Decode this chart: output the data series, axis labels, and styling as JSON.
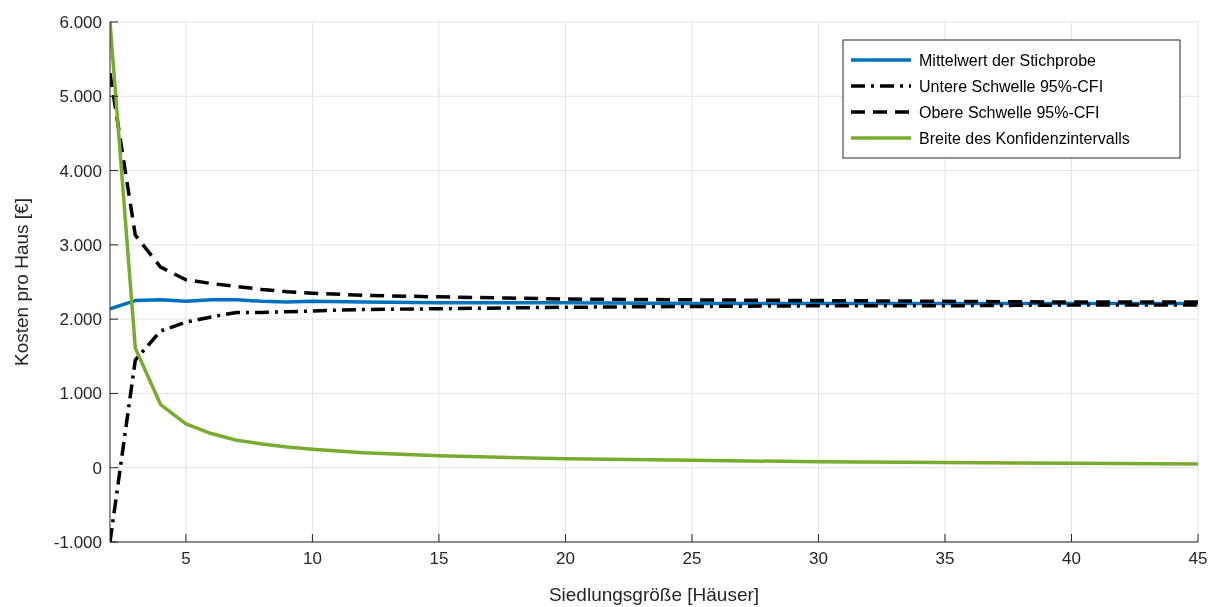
{
  "chart_data": {
    "type": "line",
    "xlabel": "Siedlungsgröße [Häuser]",
    "ylabel": "Kosten pro Haus [€]",
    "x": [
      2,
      3,
      4,
      5,
      6,
      7,
      8,
      9,
      10,
      12,
      15,
      20,
      25,
      30,
      35,
      40,
      45
    ],
    "series": [
      {
        "name": "Mittelwert der Stichprobe",
        "color": "#0072bd",
        "line_style": "solid",
        "values": [
          2140,
          2250,
          2260,
          2240,
          2260,
          2260,
          2240,
          2230,
          2240,
          2230,
          2220,
          2220,
          2210,
          2210,
          2210,
          2210,
          2210
        ]
      },
      {
        "name": "Untere Schwelle 95%-CFI",
        "color": "#000000",
        "line_style": "dashdot",
        "values": [
          -1000,
          1450,
          1840,
          1960,
          2030,
          2090,
          2090,
          2100,
          2110,
          2130,
          2140,
          2160,
          2170,
          2180,
          2180,
          2190,
          2190
        ]
      },
      {
        "name": "Obere Schwelle 95%-CFI",
        "color": "#000000",
        "line_style": "dashed",
        "values": [
          5310,
          3130,
          2700,
          2530,
          2480,
          2440,
          2400,
          2370,
          2350,
          2320,
          2300,
          2270,
          2260,
          2250,
          2240,
          2230,
          2230
        ]
      },
      {
        "name": "Breite des Konfidenzintervalls",
        "color": "#77ac30",
        "line_style": "solid",
        "values": [
          6000,
          1610,
          850,
          590,
          460,
          370,
          320,
          280,
          250,
          200,
          160,
          120,
          100,
          80,
          70,
          60,
          50
        ]
      }
    ],
    "xlim": [
      2,
      45
    ],
    "xticks": [
      5,
      10,
      15,
      20,
      25,
      30,
      35,
      40,
      45
    ],
    "ylim": [
      -1000,
      6000
    ],
    "yticks": [
      {
        "value": -1000,
        "label": "-1.000"
      },
      {
        "value": 0,
        "label": "0"
      },
      {
        "value": 1000,
        "label": "1.000"
      },
      {
        "value": 2000,
        "label": "2.000"
      },
      {
        "value": 3000,
        "label": "3.000"
      },
      {
        "value": 4000,
        "label": "4.000"
      },
      {
        "value": 5000,
        "label": "5.000"
      },
      {
        "value": 6000,
        "label": "6.000"
      }
    ],
    "grid": true,
    "legend": "top right"
  }
}
